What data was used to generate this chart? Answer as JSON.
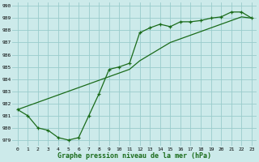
{
  "title": "Graphe pression niveau de la mer (hPa)",
  "xlabel_hours": [
    0,
    1,
    2,
    3,
    4,
    5,
    6,
    7,
    8,
    9,
    10,
    11,
    12,
    13,
    14,
    15,
    16,
    17,
    18,
    19,
    20,
    21,
    22,
    23
  ],
  "line1_y": [
    981.5,
    981.0,
    980.0,
    979.8,
    979.2,
    979.0,
    979.2,
    981.0,
    982.8,
    984.8,
    985.0,
    985.3,
    987.8,
    988.2,
    988.5,
    988.3,
    988.7,
    988.7,
    988.8,
    989.0,
    989.1,
    989.5,
    989.5,
    989.0
  ],
  "line2_y": [
    981.5,
    981.8,
    982.1,
    982.4,
    982.7,
    983.0,
    983.3,
    983.6,
    983.9,
    984.2,
    984.5,
    984.8,
    985.5,
    986.0,
    986.5,
    987.0,
    987.3,
    987.6,
    987.9,
    988.2,
    988.5,
    988.8,
    989.1,
    989.0
  ],
  "ylim_min": 978.5,
  "ylim_max": 990.3,
  "yticks": [
    979,
    980,
    981,
    982,
    983,
    984,
    985,
    986,
    987,
    988,
    989,
    990
  ],
  "bg_color": "#cceaea",
  "line_color": "#1a6b1a",
  "grid_color": "#99cccc",
  "title_fontsize": 6.0,
  "tick_fontsize": 4.5
}
